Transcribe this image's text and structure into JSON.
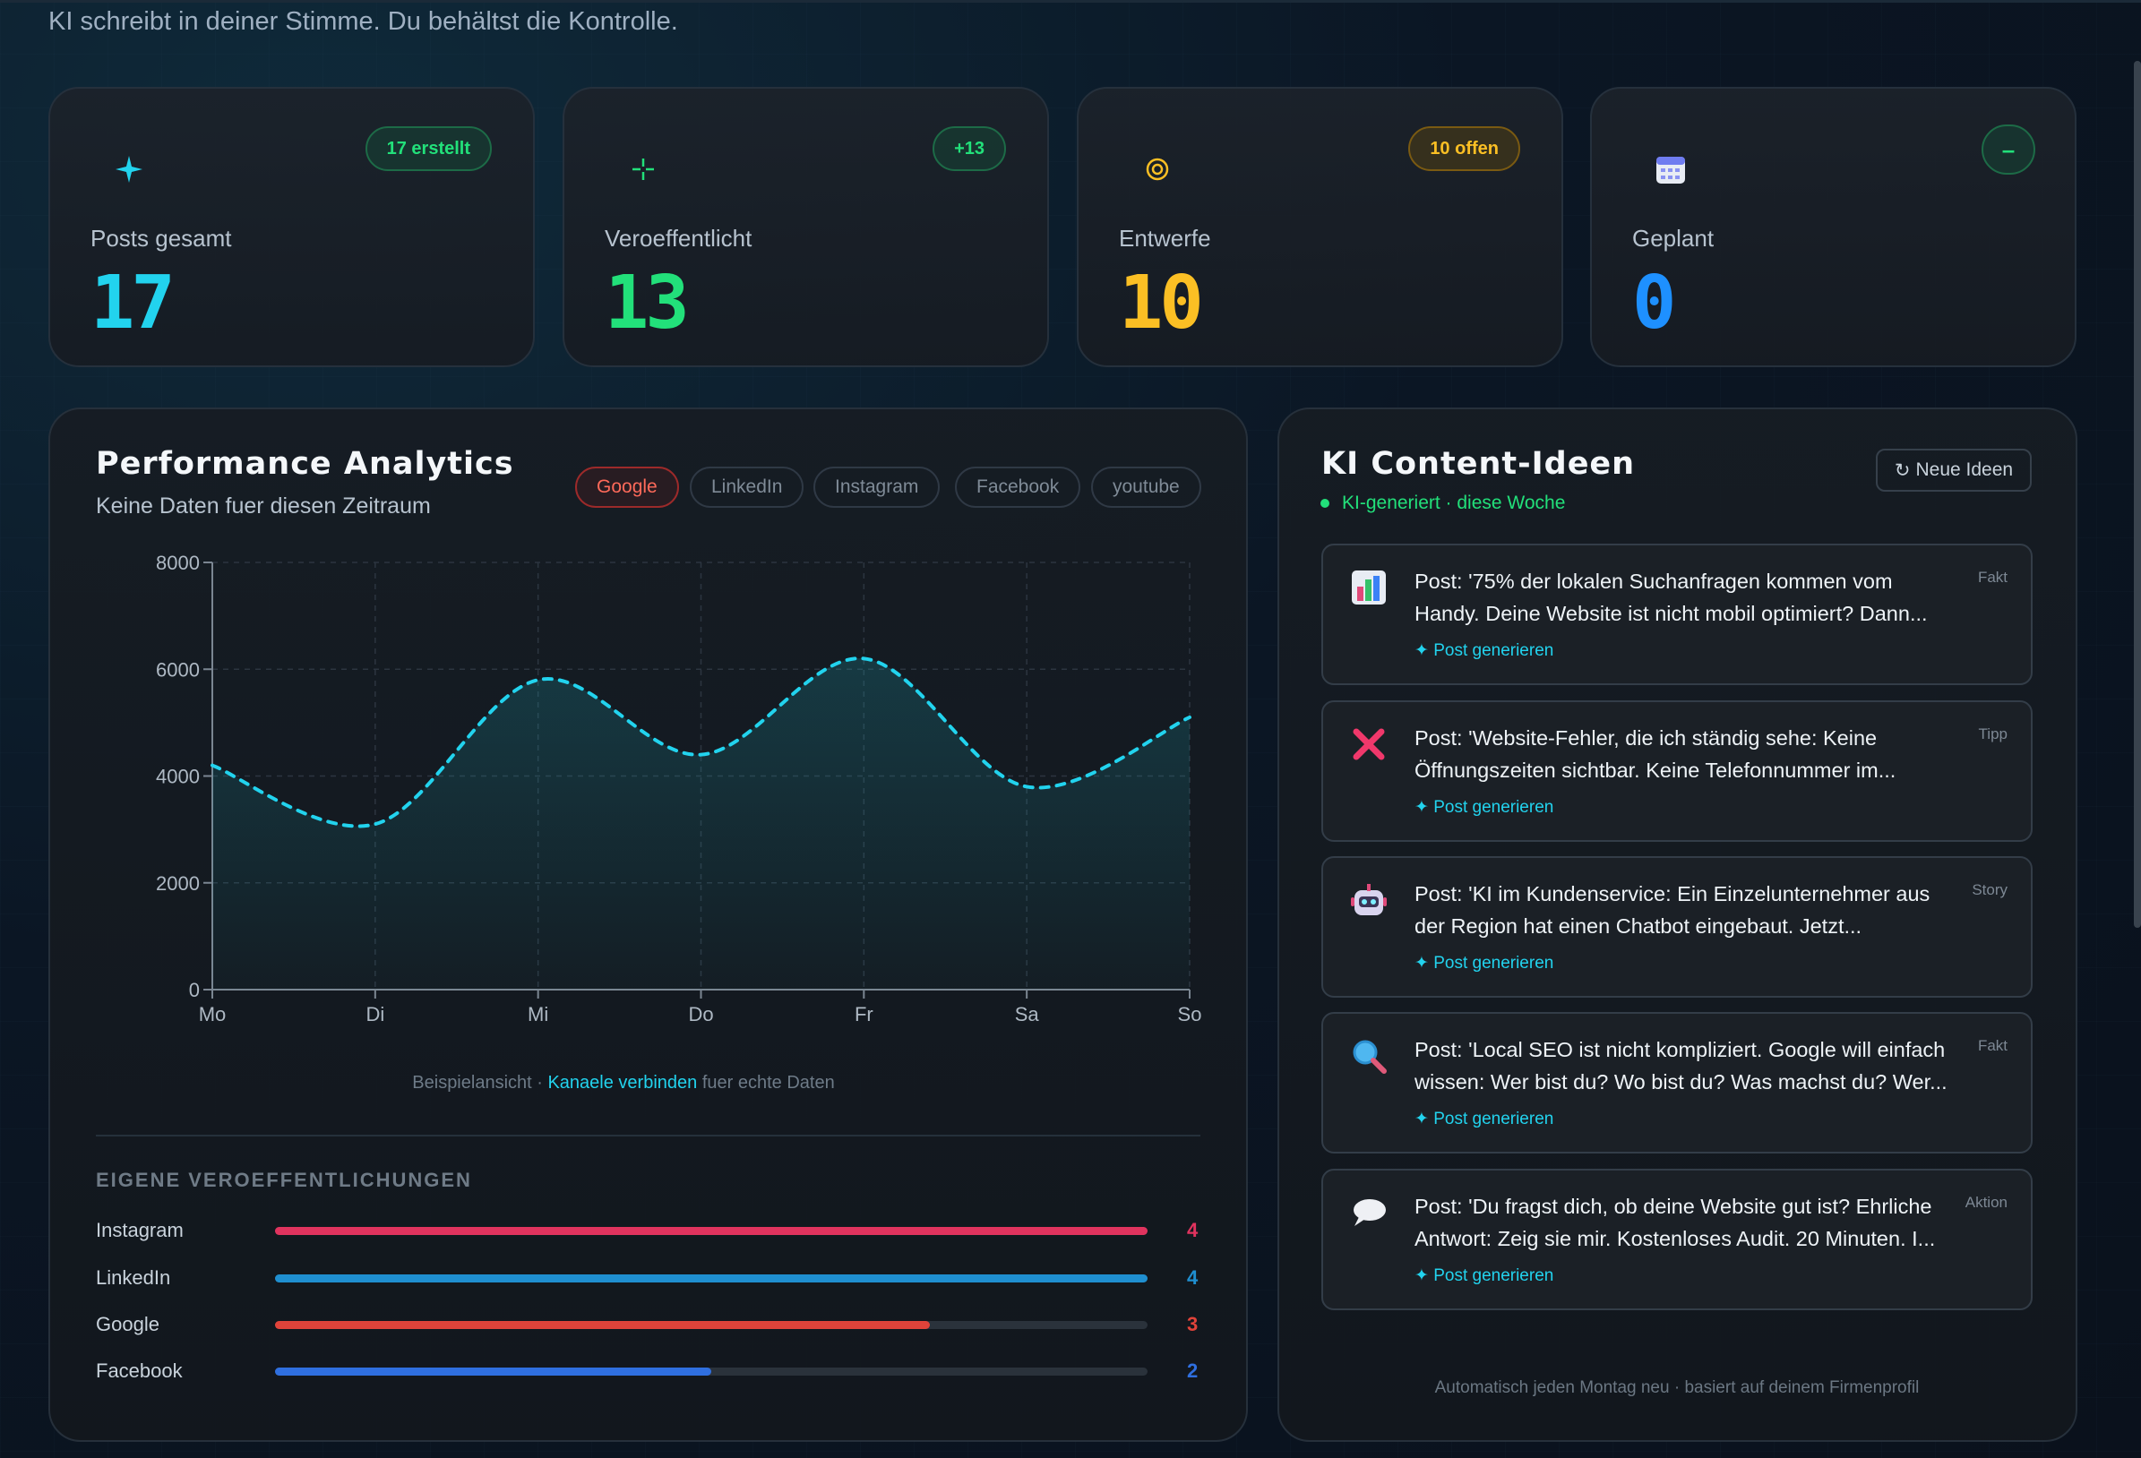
{
  "tagline": "KI schreibt in deiner Stimme. Du behältst die Kontrolle.",
  "stats": [
    {
      "label": "Posts gesamt",
      "value": "17",
      "badge": "17 erstellt",
      "icon": "sparkle-icon",
      "color": "#22d3ee",
      "badge_color": "#22e07a"
    },
    {
      "label": "Veroeffentlicht",
      "value": "13",
      "badge": "+13",
      "icon": "crosshair-icon",
      "color": "#22e07a",
      "badge_color": "#22e07a"
    },
    {
      "label": "Entwerfe",
      "value": "10",
      "badge": "10 offen",
      "icon": "target-icon",
      "color": "#fbbf24",
      "badge_color": "#fbbf24"
    },
    {
      "label": "Geplant",
      "value": "0",
      "badge": "–",
      "icon": "calendar-icon",
      "color": "#1e90ff",
      "badge_color": "#22e07a"
    }
  ],
  "performance": {
    "title": "Performance Analytics",
    "subtitle": "Keine Daten fuer diesen Zeitraum",
    "channels": [
      "Google",
      "LinkedIn",
      "Instagram",
      "Facebook",
      "youtube"
    ],
    "active_channel": "Google",
    "footnote_pre": "Beispielansicht · ",
    "footnote_link": "Kanaele verbinden",
    "footnote_post": " fuer echte Daten",
    "section_title": "EIGENE VEROEFFENTLICHUNGEN",
    "publications": [
      {
        "name": "Instagram",
        "value": 4,
        "max": 4,
        "color": "#e0335e"
      },
      {
        "name": "LinkedIn",
        "value": 4,
        "max": 4,
        "color": "#1f8fd0"
      },
      {
        "name": "Google",
        "value": 3,
        "max": 4,
        "color": "#e0433a"
      },
      {
        "name": "Facebook",
        "value": 2,
        "max": 4,
        "color": "#2f6fe0"
      }
    ]
  },
  "chart_data": {
    "type": "area",
    "categories": [
      "Mo",
      "Di",
      "Mi",
      "Do",
      "Fr",
      "Sa",
      "So"
    ],
    "values": [
      4200,
      3100,
      5800,
      4400,
      6200,
      3800,
      5100
    ],
    "ylim": [
      0,
      8000
    ],
    "yticks": [
      "0",
      "2000",
      "4000",
      "6000",
      "8000"
    ],
    "grid": true,
    "line_color": "#22d3ee"
  },
  "ideas": {
    "title": "KI Content-Ideen",
    "subtitle": "KI-generiert · diese Woche",
    "button": "Neue Ideen",
    "items": [
      {
        "icon": "bar-chart-icon",
        "text": "Post: '75% der lokalen Suchanfragen kommen vom Handy. Deine Website ist nicht mobil optimiert? Dann...",
        "tag": "Fakt",
        "action": "✦ Post generieren"
      },
      {
        "icon": "cross-mark-icon",
        "text": "Post: 'Website-Fehler, die ich ständig sehe: Keine Öffnungszeiten sichtbar. Keine Telefonnummer im...",
        "tag": "Tipp",
        "action": "✦ Post generieren"
      },
      {
        "icon": "robot-icon",
        "text": "Post: 'KI im Kundenservice: Ein Einzelunternehmer aus der Region hat einen Chatbot eingebaut. Jetzt...",
        "tag": "Story",
        "action": "✦ Post generieren"
      },
      {
        "icon": "magnifier-icon",
        "text": "Post: 'Local SEO ist nicht kompliziert. Google will einfach wissen: Wer bist du? Wo bist du? Was machst du? Wer...",
        "tag": "Fakt",
        "action": "✦ Post generieren"
      },
      {
        "icon": "speech-bubble-icon",
        "text": "Post: 'Du fragst dich, ob deine Website gut ist? Ehrliche Antwort: Zeig sie mir. Kostenloses Audit. 20 Minuten. I...",
        "tag": "Aktion",
        "action": "✦ Post generieren"
      }
    ],
    "footer": "Automatisch jeden Montag neu · basiert auf deinem Firmenprofil"
  }
}
